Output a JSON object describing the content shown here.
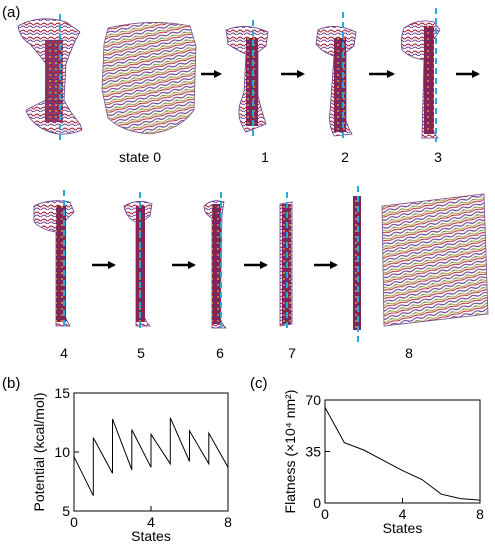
{
  "figure": {
    "panel_a": "(a)",
    "panel_b": "(b)",
    "panel_c": "(c)",
    "state_labels": [
      "state 0",
      "1",
      "2",
      "3",
      "4",
      "5",
      "6",
      "7",
      "8"
    ],
    "colors": {
      "dashed_axis": "#29a9e0",
      "strand_red": "#b01c2e",
      "strand_purple": "#6a3a8c",
      "strand_olive": "#9c9a3a",
      "strand_green": "#3f8a4a",
      "arrow": "#000000",
      "line": "#000000"
    }
  },
  "chart_data": [
    {
      "type": "line",
      "panel": "(b)",
      "title": "",
      "xlabel": "States",
      "ylabel": "Potential (kcal/mol)",
      "xlim": [
        0,
        8
      ],
      "ylim": [
        5,
        15
      ],
      "xticks": [
        "0",
        "4",
        "8"
      ],
      "yticks": [
        "5",
        "10",
        "15"
      ],
      "x": [
        0,
        1,
        1,
        2,
        2,
        3,
        3,
        4,
        4,
        5,
        5,
        6,
        6,
        7,
        7,
        8
      ],
      "y": [
        9.6,
        6.3,
        11.2,
        8.2,
        12.8,
        8.5,
        11.9,
        8.7,
        11.5,
        9.0,
        12.9,
        9.2,
        11.8,
        9.0,
        11.6,
        8.7
      ]
    },
    {
      "type": "line",
      "panel": "(c)",
      "title": "",
      "xlabel": "States",
      "ylabel": "Flatness (×10⁴ nm²)",
      "xlim": [
        0,
        8
      ],
      "ylim": [
        0,
        70
      ],
      "xticks": [
        "0",
        "4",
        "8"
      ],
      "yticks": [
        "0",
        "35",
        "70"
      ],
      "x": [
        0,
        1,
        2,
        3,
        4,
        5,
        6,
        7,
        8
      ],
      "y": [
        65,
        41,
        36,
        29,
        22,
        16,
        6,
        3,
        2
      ]
    }
  ]
}
